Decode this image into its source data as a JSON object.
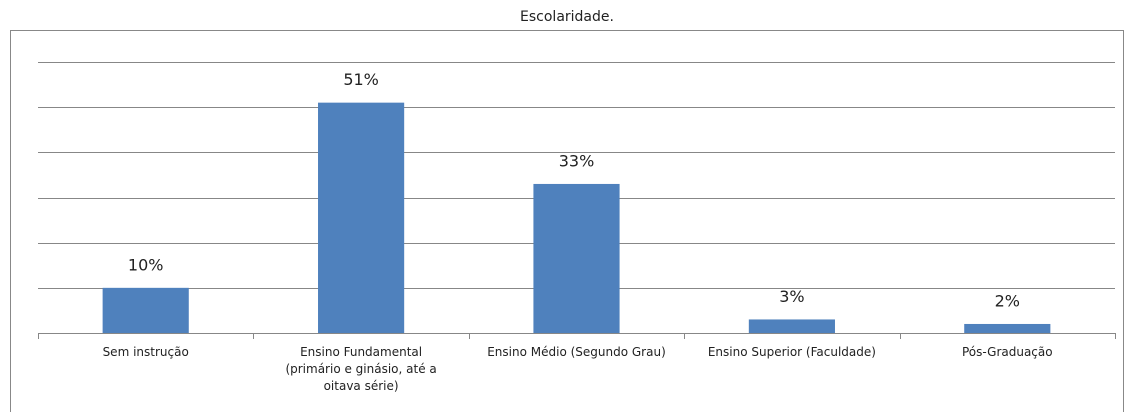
{
  "chart_data": {
    "type": "bar",
    "title": "Escolaridade.",
    "categories": [
      "Sem instrução",
      "Ensino Fundamental (primário e ginásio, até a oitava série)",
      "Ensino Médio (Segundo Grau)",
      "Ensino Superior (Faculdade)",
      "Pós-Graduação"
    ],
    "values": [
      10,
      51,
      33,
      3,
      2
    ],
    "value_labels": [
      "10%",
      "51%",
      "33%",
      "3%",
      "2%"
    ],
    "color": "#4f81bd",
    "ylim": [
      0,
      60
    ],
    "yticks": [
      0,
      10,
      20,
      30,
      40,
      50,
      60
    ],
    "grid": true
  }
}
